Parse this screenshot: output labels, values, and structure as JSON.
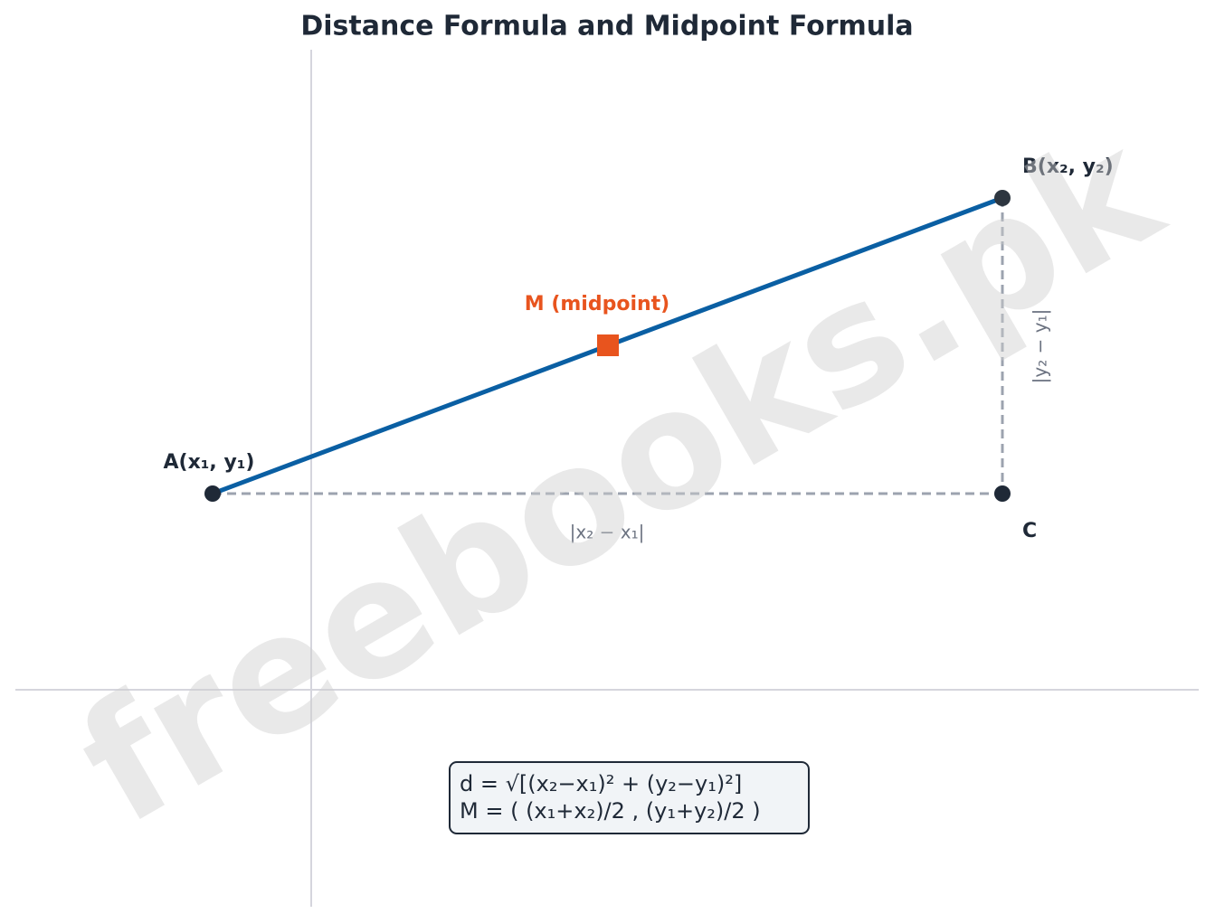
{
  "title": "Distance Formula and Midpoint Formula",
  "points": {
    "a": "A(x₁, y₁)",
    "b": "B(x₂, y₂)",
    "c": "C",
    "m": "M (midpoint)"
  },
  "sides": {
    "horizontal": "|x₂ − x₁|",
    "vertical": "|y₂ − y₁|"
  },
  "formulas": [
    "d = √[(x₂−x₁)² + (y₂−y₁)²]",
    "M = ( (x₁+x₂)/2 , (y₁+y₂)/2 )"
  ],
  "watermark": "freebooks.pk"
}
